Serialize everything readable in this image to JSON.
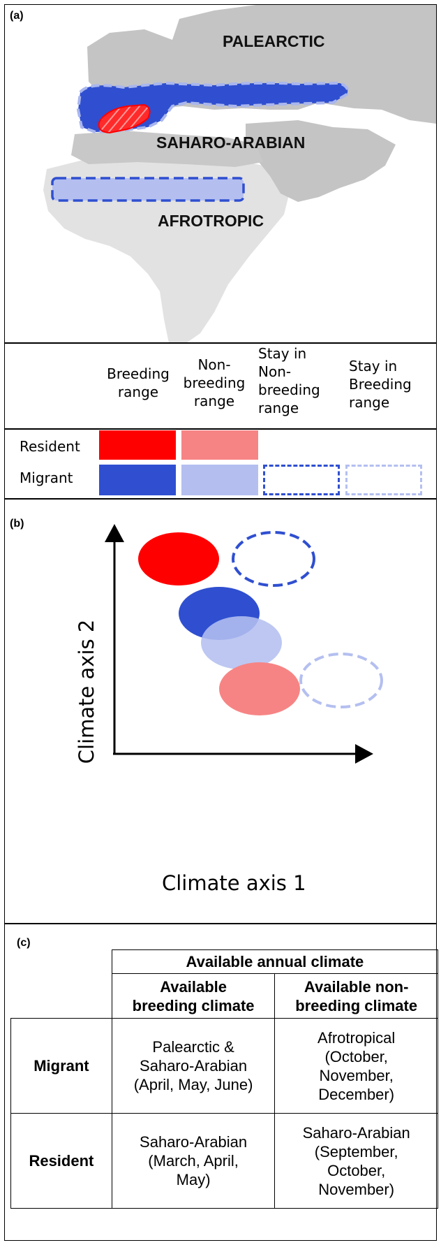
{
  "panel_a": {
    "label": "(a)",
    "regions": {
      "palearctic": "PALEARCTIC",
      "saharo_arabian": "SAHARO-ARABIAN",
      "afrotropic": "AFROTROPIC"
    }
  },
  "legend": {
    "columns": [
      [
        "Breeding",
        "range"
      ],
      [
        "Non-",
        "breeding",
        "range"
      ],
      [
        "Stay in",
        "Non-",
        "breeding",
        "range"
      ],
      [
        "Stay in",
        "Breeding",
        "range"
      ]
    ],
    "rows": [
      "Resident",
      "Migrant"
    ],
    "colors": {
      "resident_breeding": "#ff0000",
      "resident_nonbreeding": "#f78484",
      "migrant_breeding": "#2f4fd0",
      "migrant_nonbreeding": "#b4bff0",
      "migrant_stay_nonbreeding": "#2f4fd0",
      "migrant_stay_breeding": "#b4bff0"
    }
  },
  "panel_b": {
    "label": "(b)",
    "x_axis": "Climate axis 1",
    "y_axis": "Climate axis 2"
  },
  "panel_c": {
    "label": "(c)",
    "header_top": "Available annual climate",
    "header_cols": [
      [
        "Available",
        "breeding climate"
      ],
      [
        "Available non-",
        "breeding climate"
      ]
    ],
    "rows": [
      {
        "name": "Migrant",
        "breeding": [
          "Palearctic &",
          "Saharo-Arabian",
          "(April, May, June)"
        ],
        "nonbreeding": [
          "Afrotropical",
          "(October,",
          "November,",
          "December)"
        ]
      },
      {
        "name": "Resident",
        "breeding": [
          "Saharo-Arabian",
          "(March, April,",
          "May)"
        ],
        "nonbreeding": [
          "Saharo-Arabian",
          "(September,",
          "October,",
          "November)"
        ]
      }
    ]
  }
}
